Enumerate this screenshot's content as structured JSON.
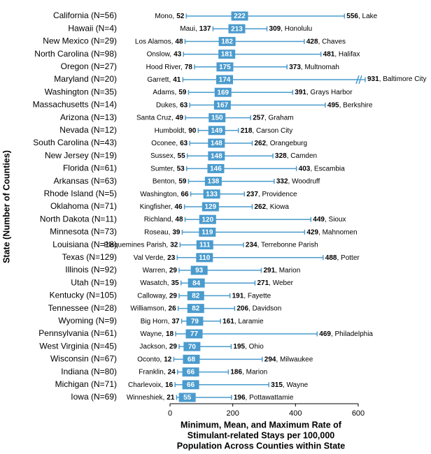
{
  "chart_data": {
    "type": "range",
    "y_label": "State (Number of Counties)",
    "x_label": [
      "Minimum, Mean, and Maximum Rate of",
      "Stimulant-related Stays per 100,000",
      "Population Across  Counties within State"
    ],
    "categories": [
      "California (N=56)",
      "Hawaii (N=4)",
      "New Mexico (N=29)",
      "North Carolina (N=98)",
      "Oregon (N=27)",
      "Maryland (N=20)",
      "Washington (N=35)",
      "Massachusetts (N=14)",
      "Arizona (N=13)",
      "Nevada (N=12)",
      "South Carolina (N=43)",
      "New Jersey (N=19)",
      "Florida (N=61)",
      "Arkansas (N=63)",
      "Rhode Island (N=5)",
      "Oklahoma (N=71)",
      "North Dakota (N=11)",
      "Minnesota (N=73)",
      "Louisiana (N=18)",
      "Texas (N=129)",
      "Illinois (N=92)",
      "Utah (N=19)",
      "Kentucky (N=105)",
      "Tennessee (N=28)",
      "Wyoming (N=9)",
      "Pennsylvania (N=61)",
      "West Virginia (N=45)",
      "Wisconsin (N=67)",
      "Indiana (N=80)",
      "Michigan (N=71)",
      "Iowa (N=69)"
    ],
    "min_counties": [
      "Mono,",
      "Maui,",
      "Los Alamos,",
      "Onslow,",
      "Hood River,",
      "Garrett,",
      "Adams,",
      "Dukes,",
      "Santa Cruz,",
      "Humboldt,",
      "Oconee,",
      "Sussex,",
      "Sumter,",
      "Benton,",
      "Washington,",
      "Kingfisher,",
      "Richland,",
      "Roseau,",
      "Plaquemines  Parish,",
      "Val Verde,",
      "Warren,",
      "Wasatch,",
      "Calloway,",
      "Williamson,",
      "Big Horn,",
      "Wayne,",
      "Jackson,",
      "Oconto,",
      "Franklin,",
      "Charlevoix,",
      "Winneshiek,"
    ],
    "min_values": [
      52,
      137,
      48,
      43,
      78,
      41,
      59,
      63,
      49,
      90,
      63,
      55,
      53,
      59,
      66,
      46,
      48,
      39,
      32,
      23,
      29,
      35,
      29,
      26,
      37,
      18,
      29,
      12,
      24,
      16,
      21
    ],
    "mean_values": [
      222,
      213,
      182,
      181,
      175,
      174,
      169,
      167,
      150,
      149,
      148,
      148,
      146,
      138,
      133,
      129,
      120,
      119,
      111,
      110,
      93,
      84,
      82,
      82,
      79,
      77,
      70,
      68,
      66,
      66,
      55
    ],
    "max_values": [
      556,
      309,
      428,
      481,
      373,
      931,
      391,
      495,
      257,
      218,
      262,
      328,
      403,
      332,
      237,
      262,
      449,
      429,
      234,
      488,
      291,
      271,
      191,
      206,
      161,
      469,
      195,
      294,
      186,
      315,
      196
    ],
    "max_counties": [
      ", Lake",
      ", Honolulu",
      ", Chaves",
      ", Halifax",
      ", Multnomah",
      ", Baltimore City",
      ", Grays Harbor",
      ", Berkshire",
      ", Graham",
      ", Carson City",
      ", Orangeburg",
      ", Camden",
      ", Escambia",
      ", Woodruff",
      ", Providence",
      ", Kiowa",
      ", Sioux",
      ", Mahnomen",
      ", Terrebonne Parish",
      ", Potter",
      ", Marion",
      ", Weber",
      ", Fayette",
      ", Davidson",
      ", Laramie",
      ", Philadelphia",
      ", Ohio",
      ", Milwaukee",
      ", Marion",
      ", Wayne",
      ", Pottawattamie"
    ],
    "color": "#4a9bce",
    "xlim": [
      0,
      600
    ],
    "xticks": [
      0,
      200,
      400,
      600
    ]
  }
}
